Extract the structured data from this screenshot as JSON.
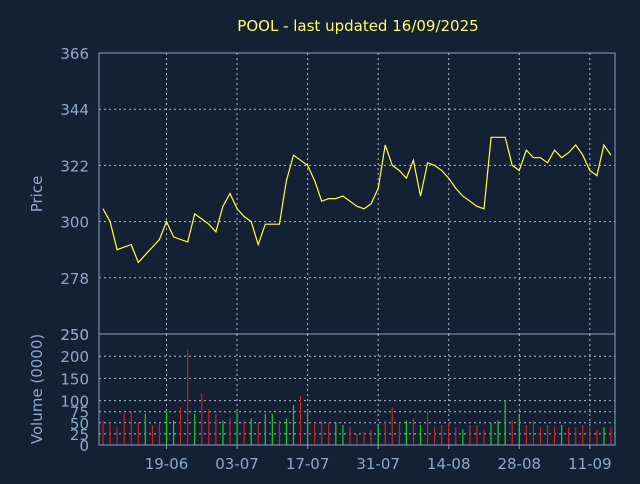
{
  "title": "POOL - last updated 16/09/2025",
  "colors": {
    "background": "#142033",
    "frame": "#8aa0c0",
    "grid": "#b0bccc",
    "text": "#8fa8cc",
    "title": "#ffff66",
    "price_line": "#ffff44",
    "volume_up": "#22cc22",
    "volume_down": "#cc2222"
  },
  "chart_data": [
    {
      "type": "line",
      "title": "POOL - last updated 16/09/2025",
      "ylabel": "Price",
      "ylim": [
        256,
        366
      ],
      "yticks": [
        250,
        278,
        300,
        322,
        344,
        366
      ],
      "x_tick_labels": [
        {
          "day": 9,
          "label": "19-06"
        },
        {
          "day": 19,
          "label": "03-07"
        },
        {
          "day": 29,
          "label": "17-07"
        },
        {
          "day": 39,
          "label": "31-07"
        },
        {
          "day": 49,
          "label": "14-08"
        },
        {
          "day": 59,
          "label": "28-08"
        },
        {
          "day": 69,
          "label": "11-09"
        }
      ],
      "grid": true,
      "series": [
        {
          "x": [
            0,
            1,
            2,
            3,
            4,
            5,
            6,
            7,
            8,
            9,
            10,
            11,
            12,
            13,
            14,
            15,
            16,
            17,
            18,
            19,
            20,
            21,
            22,
            23,
            24,
            25,
            26,
            27,
            28,
            29,
            30,
            31,
            32,
            33,
            34,
            35,
            36,
            37,
            38,
            39,
            40,
            41,
            42,
            43,
            44,
            45,
            46,
            47,
            48,
            49,
            50,
            51,
            52,
            53,
            54,
            55,
            56,
            57,
            58,
            59,
            60,
            61,
            62,
            63,
            64,
            65,
            66,
            67,
            68,
            69,
            70,
            71,
            72
          ],
          "values": [
            305,
            300,
            289,
            290,
            291,
            284,
            287,
            290,
            293,
            300,
            294,
            293,
            292,
            303,
            301,
            299,
            296,
            306,
            311,
            305,
            302,
            300,
            291,
            299,
            299,
            299,
            316,
            326,
            324,
            322,
            316,
            308,
            309,
            309,
            310,
            308,
            306,
            305,
            307,
            313,
            330,
            322,
            320,
            317,
            324,
            310,
            323,
            322,
            320,
            317,
            313,
            310,
            308,
            306,
            305,
            333,
            333,
            333,
            322,
            320,
            328,
            325,
            325,
            323,
            328,
            325,
            327,
            330,
            326,
            320,
            318,
            330,
            326
          ]
        }
      ]
    },
    {
      "type": "bar",
      "ylabel": "Volume (0000)",
      "ylim": [
        0,
        250
      ],
      "yticks": [
        0,
        25,
        50,
        75,
        100,
        150,
        200,
        250
      ],
      "grid": true,
      "series": [
        {
          "values": [
            55,
            50,
            40,
            70,
            75,
            50,
            70,
            45,
            50,
            75,
            55,
            85,
            215,
            70,
            115,
            80,
            70,
            55,
            60,
            75,
            55,
            60,
            50,
            70,
            70,
            55,
            60,
            90,
            110,
            75,
            50,
            55,
            50,
            50,
            45,
            40,
            25,
            30,
            35,
            45,
            55,
            85,
            50,
            55,
            60,
            45,
            75,
            40,
            45,
            50,
            40,
            35,
            45,
            45,
            35,
            50,
            55,
            100,
            55,
            70,
            45,
            55,
            40,
            45,
            40,
            45,
            40,
            40,
            45,
            40,
            35,
            40,
            40
          ],
          "up": [
            false,
            false,
            false,
            false,
            false,
            false,
            true,
            false,
            false,
            true,
            true,
            false,
            false,
            true,
            false,
            false,
            false,
            true,
            false,
            true,
            false,
            true,
            false,
            true,
            true,
            false,
            true,
            true,
            false,
            true,
            false,
            false,
            false,
            true,
            true,
            false,
            false,
            false,
            false,
            true,
            false,
            false,
            false,
            true,
            false,
            true,
            false,
            false,
            false,
            false,
            false,
            true,
            false,
            false,
            false,
            true,
            true,
            true,
            false,
            true,
            false,
            false,
            false,
            false,
            false,
            true,
            false,
            false,
            false,
            false,
            false,
            true,
            false
          ]
        }
      ]
    }
  ]
}
